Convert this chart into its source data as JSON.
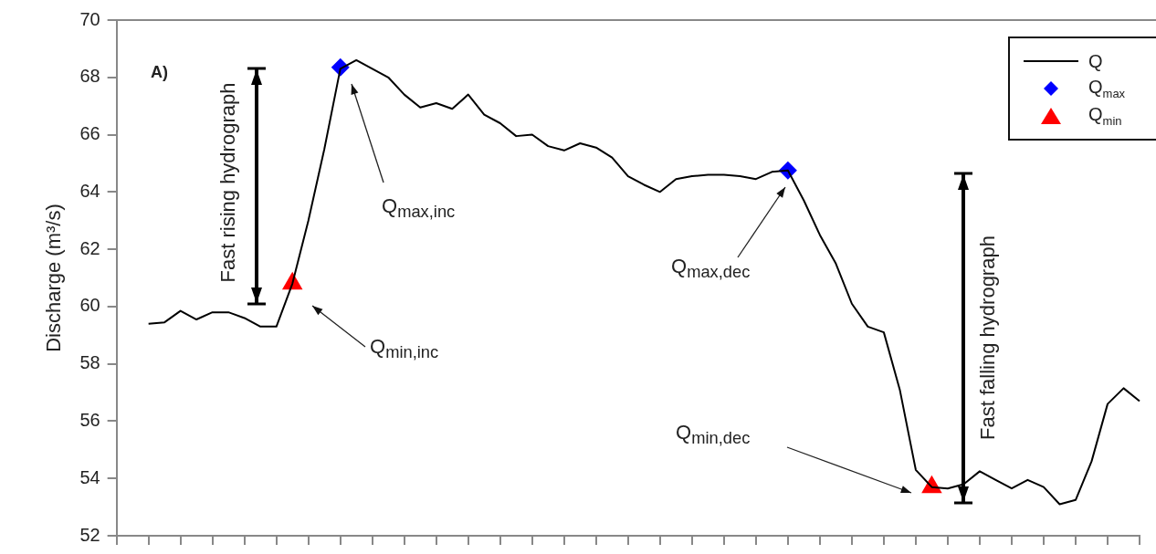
{
  "chart_data": {
    "type": "line",
    "ylabel": "Discharge (m³/s)",
    "categories": [
      null,
      null,
      null,
      null,
      null,
      null,
      null,
      null,
      null,
      null,
      null,
      null,
      null,
      null,
      null,
      null,
      null,
      null,
      null,
      null,
      null,
      null,
      null,
      null,
      null,
      null,
      null,
      null,
      null,
      null,
      null,
      null,
      null,
      null,
      null,
      null,
      null,
      null,
      null,
      null,
      null,
      null,
      null,
      null,
      null,
      null,
      null,
      null,
      null,
      null,
      null,
      null,
      null,
      null,
      null,
      null,
      null,
      null,
      null,
      null,
      null,
      null,
      null,
      null,
      null
    ],
    "series": [
      {
        "name": "Q",
        "color": "#000000",
        "marker": "none",
        "values": [
          null,
          null,
          59.4,
          59.45,
          59.85,
          59.55,
          59.8,
          59.8,
          59.6,
          59.3,
          59.3,
          60.8,
          63,
          65.5,
          68.3,
          68.6,
          68.3,
          68,
          67.4,
          66.95,
          67.1,
          66.9,
          67.4,
          66.7,
          66.4,
          65.95,
          66,
          65.6,
          65.45,
          65.7,
          65.55,
          65.2,
          64.55,
          64.25,
          64,
          64.45,
          64.55,
          64.6,
          64.6,
          64.55,
          64.45,
          64.7,
          64.75,
          63.7,
          62.5,
          61.5,
          60.1,
          59.3,
          59.1,
          57.1,
          54.3,
          53.7,
          53.65,
          53.8,
          54.25,
          53.95,
          53.65,
          53.95,
          53.7,
          53.1,
          53.25,
          54.6,
          56.6,
          57.15,
          56.7
        ]
      },
      {
        "name": "Q$_{max}$",
        "type": "scatter",
        "color": "#0000ff",
        "marker": "diamond",
        "values": [
          null,
          null,
          null,
          null,
          null,
          null,
          null,
          null,
          null,
          null,
          null,
          null,
          null,
          null,
          68.35,
          null,
          null,
          null,
          null,
          null,
          null,
          null,
          null,
          null,
          null,
          null,
          null,
          null,
          null,
          null,
          null,
          null,
          null,
          null,
          null,
          null,
          null,
          null,
          null,
          null,
          null,
          null,
          64.75,
          null,
          null,
          null,
          null,
          null,
          null,
          null,
          null,
          null,
          null,
          null,
          null,
          null,
          null,
          null,
          null,
          null,
          null,
          null,
          null,
          null,
          null
        ]
      },
      {
        "name": "Q$_{min}$",
        "type": "scatter",
        "color": "#ff0000",
        "marker": "triangle",
        "values": [
          null,
          null,
          null,
          null,
          null,
          null,
          null,
          null,
          null,
          null,
          null,
          60.8,
          null,
          null,
          null,
          null,
          null,
          null,
          null,
          null,
          null,
          null,
          null,
          null,
          null,
          null,
          null,
          null,
          null,
          null,
          null,
          null,
          null,
          null,
          null,
          null,
          null,
          null,
          null,
          null,
          null,
          null,
          null,
          null,
          null,
          null,
          null,
          null,
          null,
          null,
          null,
          53.7,
          null,
          null,
          null,
          null,
          null,
          null,
          null,
          null,
          null,
          null,
          null,
          null,
          null
        ]
      }
    ],
    "ylim": [
      52,
      70
    ],
    "yticks": [
      52,
      54,
      56,
      58,
      60,
      62,
      64,
      66,
      68,
      70
    ],
    "tick_labels": "y",
    "grid": false,
    "legend": "top right",
    "annotations": [
      "A)",
      "Fast rising hydrograph",
      "Q$_{max,inc}$",
      "Q$_{min,inc}$",
      "Q$_{max,dec}$",
      "Q$_{min,dec}$",
      "Fast falling hydrograph"
    ]
  }
}
